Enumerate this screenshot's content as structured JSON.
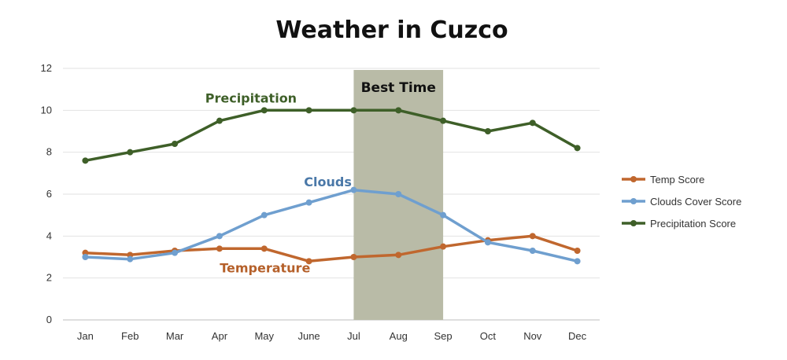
{
  "chart_data": {
    "type": "line",
    "title": "Weather in Cuzco",
    "xlabel": "",
    "ylabel": "",
    "categories": [
      "Jan",
      "Feb",
      "Mar",
      "Apr",
      "May",
      "June",
      "Jul",
      "Aug",
      "Sep",
      "Oct",
      "Nov",
      "Dec"
    ],
    "ylim": [
      0,
      12
    ],
    "yticks": [
      "0",
      "2",
      "4",
      "6",
      "8",
      "10",
      "12"
    ],
    "grid": true,
    "legend_position": "right",
    "series": [
      {
        "name": "Temp Score",
        "color": "#c0672e",
        "values": [
          3.2,
          3.1,
          3.3,
          3.4,
          3.4,
          2.8,
          3.0,
          3.1,
          3.5,
          3.8,
          4.0,
          3.3
        ]
      },
      {
        "name": "Clouds Cover Score",
        "color": "#6f9fcf",
        "values": [
          3.0,
          2.9,
          3.2,
          4.0,
          5.0,
          5.6,
          6.2,
          6.0,
          5.0,
          3.7,
          3.3,
          2.8
        ]
      },
      {
        "name": "Precipitation Score",
        "color": "#3e5f28",
        "values": [
          7.6,
          8.0,
          8.4,
          9.5,
          10.0,
          10.0,
          10.0,
          10.0,
          9.5,
          9.0,
          9.4,
          8.2
        ]
      }
    ],
    "highlight_band": {
      "label": "Best Time",
      "from": "Jul",
      "to": "Sep",
      "color": "#b9bba7"
    },
    "annotations": [
      {
        "text": "Precipitation",
        "series": "Precipitation Score",
        "category": "Apr",
        "value": 10.6,
        "color": "#3e5f28"
      },
      {
        "text": "Clouds",
        "series": "Clouds Cover Score",
        "category": "June",
        "value": 6.6,
        "color": "#4a78a8"
      },
      {
        "text": "Temperature",
        "series": "Temp Score",
        "category": "May",
        "value": 2.5,
        "color": "#b5602a"
      }
    ]
  }
}
